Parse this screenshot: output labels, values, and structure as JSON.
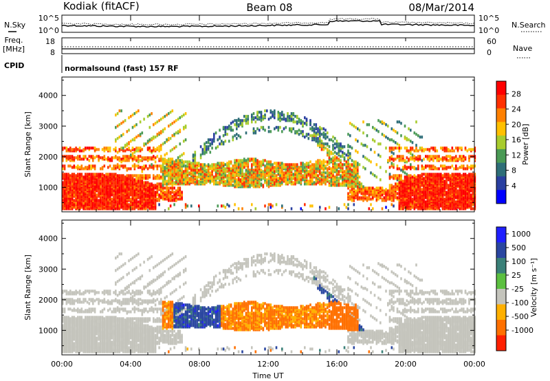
{
  "header": {
    "station": "Kodiak (fitACF)",
    "beam": "Beam 08",
    "date": "08/Mar/2014"
  },
  "noise_panel": {
    "left_label": "N.Sky",
    "right_label": "N.Search",
    "y_ticks": [
      "10^5",
      "10^0"
    ]
  },
  "freq_panel": {
    "left_label_1": "Freq.",
    "left_label_2": "[MHz]",
    "right_label": "Nave",
    "left_ticks": [
      "18",
      "8"
    ],
    "right_ticks": [
      "60",
      "0"
    ]
  },
  "cpid": {
    "label": "CPID",
    "value": "normalsound (fast) 157 RF"
  },
  "colors": {
    "power_scale": [
      "#0000ff",
      "#2a3fa0",
      "#2e6e78",
      "#4a9a55",
      "#a8cc2e",
      "#ffc000",
      "#ff8000",
      "#ff3000",
      "#ff0000"
    ],
    "velocity_scale": [
      "#2020ff",
      "#2a46a0",
      "#3a8078",
      "#5cc040",
      "#c4c4bc",
      "#ffb000",
      "#ff7000",
      "#ff2000"
    ],
    "ground_scatter": "#c4c4bc"
  },
  "chart_data": [
    {
      "type": "heatmap",
      "title": "Power",
      "ylabel": "Slant Range [km]",
      "y_ticks": [
        "1000",
        "2000",
        "3000",
        "4000"
      ],
      "ylim": [
        200,
        4600
      ],
      "colorbar_label": "Power [dB]",
      "colorbar_ticks": [
        "28",
        "24",
        "20",
        "16",
        "12",
        "8",
        "4"
      ],
      "colorbar_range": [
        0,
        32
      ]
    },
    {
      "type": "heatmap",
      "title": "Velocity",
      "ylabel": "Slant Range [km]",
      "y_ticks": [
        "1000",
        "2000",
        "3000",
        "4000"
      ],
      "ylim": [
        200,
        4600
      ],
      "colorbar_label": "Velocity [m s⁻¹]",
      "colorbar_ticks": [
        "1000",
        "500",
        "100",
        "25",
        "-25",
        "-100",
        "-500",
        "-1000"
      ],
      "xlabel": "Time UT",
      "x_ticks": [
        "00:00",
        "04:00",
        "08:00",
        "12:00",
        "16:00",
        "20:00",
        "00:00"
      ],
      "xlim_hours": [
        0,
        24
      ]
    }
  ]
}
